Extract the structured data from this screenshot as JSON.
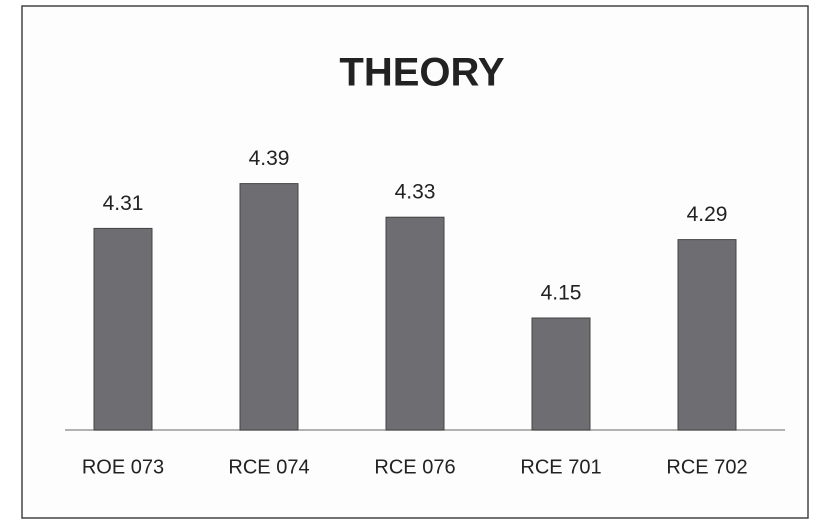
{
  "chart_data": {
    "type": "bar",
    "title": "THEORY",
    "categories": [
      "ROE 073",
      "RCE 074",
      "RCE 076",
      "RCE 701",
      "RCE 702"
    ],
    "values": [
      4.31,
      4.39,
      4.33,
      4.15,
      4.29
    ],
    "color": "#6e6d72",
    "ylim": [
      3.95,
      4.45
    ],
    "grid": false
  }
}
